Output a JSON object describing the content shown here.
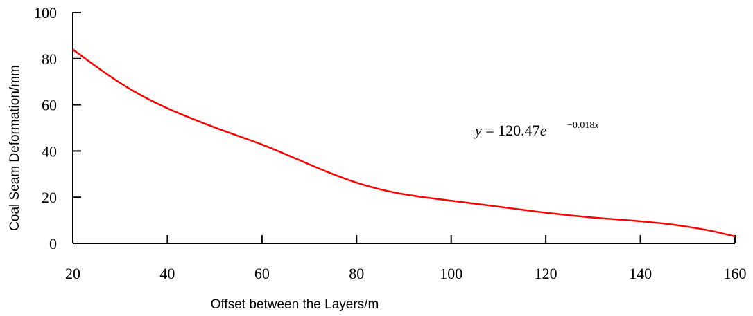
{
  "chart_data": {
    "type": "line",
    "title": "",
    "xlabel": "Offset between the Layers/m",
    "ylabel": "Coal Seam Deformation/mm",
    "xlim": [
      20,
      160
    ],
    "ylim": [
      0,
      100
    ],
    "x_ticks": [
      "20",
      "40",
      "60",
      "80",
      "100",
      "120",
      "140",
      "160"
    ],
    "y_ticks": [
      "0",
      "20",
      "40",
      "60",
      "80",
      "100"
    ],
    "grid": false,
    "legend": "none",
    "series": [
      {
        "color": "#ff0000",
        "x": [
          20,
          25,
          30,
          35,
          40,
          45,
          50,
          55,
          60,
          65,
          70,
          75,
          80,
          85,
          90,
          95,
          100,
          105,
          110,
          115,
          120,
          125,
          130,
          135,
          140,
          145,
          150,
          155,
          160
        ],
        "y": [
          84,
          76.5,
          69.5,
          63.5,
          58.5,
          54.2,
          50.2,
          46.5,
          42.8,
          38.6,
          34.2,
          30.0,
          26.3,
          23.4,
          21.3,
          19.8,
          18.5,
          17.2,
          15.9,
          14.6,
          13.3,
          12.2,
          11.2,
          10.4,
          9.6,
          8.6,
          7.2,
          5.4,
          3.0
        ]
      }
    ],
    "annotation": {
      "var_y": "y",
      "equals": " = 120.47",
      "base": "e",
      "exponent_sign": "−",
      "exponent_value": "0.018",
      "exponent_var": "x"
    }
  }
}
